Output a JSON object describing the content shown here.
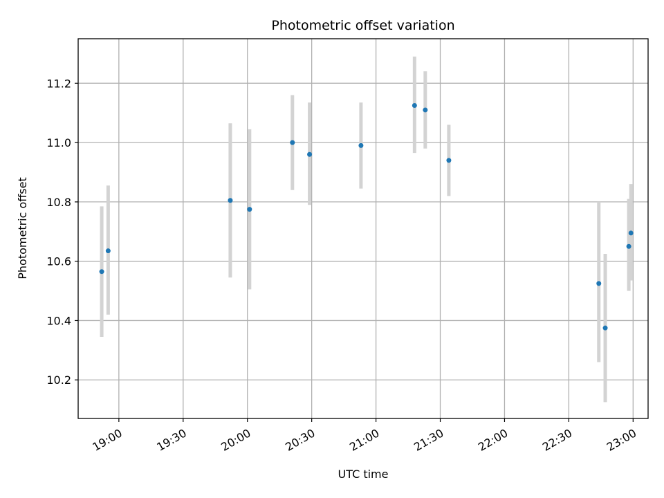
{
  "chart_data": {
    "type": "scatter",
    "title": "Photometric offset variation",
    "xlabel": "UTC time",
    "ylabel": "Photometric offset",
    "xlim": [
      "18:41",
      "23:07"
    ],
    "ylim": [
      10.07,
      11.35
    ],
    "x_ticks": [
      "19:00",
      "19:30",
      "20:00",
      "20:30",
      "21:00",
      "21:30",
      "22:00",
      "22:30",
      "23:00"
    ],
    "y_ticks": [
      10.2,
      10.4,
      10.6,
      10.8,
      11.0,
      11.2
    ],
    "grid": true,
    "colors": {
      "point": "#1f77b4",
      "error_bar": "#d3d3d3",
      "grid": "#b0b0b0"
    },
    "points": [
      {
        "x": "18:52",
        "y": 10.565,
        "err_low": 10.345,
        "err_high": 10.785
      },
      {
        "x": "18:55",
        "y": 10.635,
        "err_low": 10.42,
        "err_high": 10.855
      },
      {
        "x": "19:52",
        "y": 10.805,
        "err_low": 10.545,
        "err_high": 11.065
      },
      {
        "x": "20:01",
        "y": 10.775,
        "err_low": 10.505,
        "err_high": 11.045
      },
      {
        "x": "20:21",
        "y": 11.0,
        "err_low": 10.84,
        "err_high": 11.16
      },
      {
        "x": "20:29",
        "y": 10.96,
        "err_low": 10.79,
        "err_high": 11.135
      },
      {
        "x": "20:53",
        "y": 10.99,
        "err_low": 10.845,
        "err_high": 11.135
      },
      {
        "x": "21:18",
        "y": 11.125,
        "err_low": 10.965,
        "err_high": 11.29
      },
      {
        "x": "21:23",
        "y": 11.11,
        "err_low": 10.98,
        "err_high": 11.24
      },
      {
        "x": "21:34",
        "y": 10.94,
        "err_low": 10.82,
        "err_high": 11.06
      },
      {
        "x": "22:44",
        "y": 10.525,
        "err_low": 10.26,
        "err_high": 10.8
      },
      {
        "x": "22:47",
        "y": 10.375,
        "err_low": 10.125,
        "err_high": 10.625
      },
      {
        "x": "22:58",
        "y": 10.65,
        "err_low": 10.5,
        "err_high": 10.81
      },
      {
        "x": "22:59",
        "y": 10.695,
        "err_low": 10.535,
        "err_high": 10.86
      }
    ]
  }
}
